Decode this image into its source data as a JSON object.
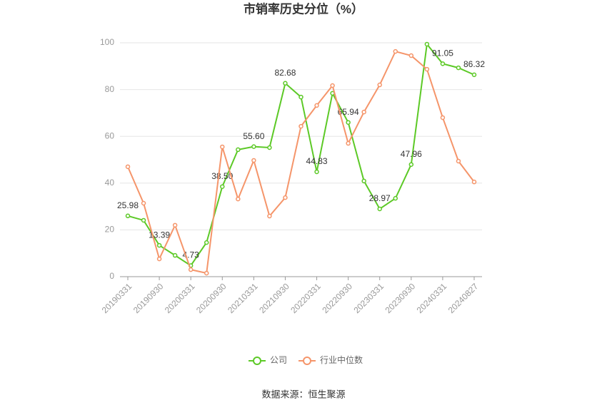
{
  "chart_data": {
    "type": "line",
    "title": "市销率历史分位（%）",
    "categories": [
      "20190331",
      null,
      "20190930",
      null,
      "20200331",
      null,
      "20200930",
      null,
      "20210331",
      null,
      "20210930",
      null,
      "20220331",
      null,
      "20220930",
      null,
      "20230331",
      null,
      "20230930",
      null,
      "20240331",
      null,
      "20240827"
    ],
    "series": [
      {
        "name": "公司",
        "color": "#5cc926",
        "values": [
          25.98,
          24.1,
          13.39,
          9.1,
          4.73,
          14.6,
          38.5,
          54.3,
          55.6,
          55.2,
          82.68,
          76.8,
          44.83,
          78.4,
          65.94,
          40.9,
          28.97,
          33.5,
          47.96,
          99.4,
          91.05,
          89.3,
          86.32
        ],
        "value_labels": [
          "25.98",
          null,
          "13.39",
          null,
          "4.73",
          null,
          "38.50",
          null,
          "55.60",
          null,
          "82.68",
          null,
          "44.83",
          null,
          "65.94",
          null,
          "28.97",
          null,
          "47.96",
          null,
          "91.05",
          null,
          "86.32"
        ]
      },
      {
        "name": "行业中位数",
        "color": "#f5956a",
        "values": [
          47.0,
          31.4,
          7.6,
          22.0,
          3.0,
          1.5,
          55.5,
          33.2,
          49.7,
          25.9,
          33.8,
          64.3,
          73.2,
          81.7,
          57.0,
          70.4,
          82.0,
          96.3,
          94.5,
          88.7,
          68.0,
          49.4,
          40.5
        ]
      }
    ],
    "ylim": [
      0,
      100
    ],
    "yticks": [
      0,
      20,
      40,
      60,
      80,
      100
    ],
    "grid": true,
    "source": "数据来源：恒生聚源"
  }
}
